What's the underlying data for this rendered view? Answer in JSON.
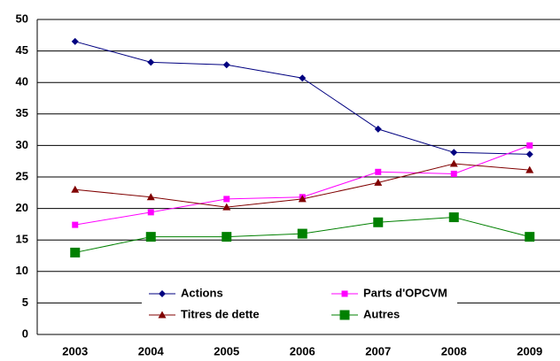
{
  "chart_data": {
    "type": "line",
    "categories": [
      "2003",
      "2004",
      "2005",
      "2006",
      "2007",
      "2008",
      "2009"
    ],
    "series": [
      {
        "name": "Actions",
        "color": "#000080",
        "marker": "diamond",
        "values": [
          46.5,
          43.2,
          42.8,
          40.7,
          32.6,
          28.9,
          28.6
        ]
      },
      {
        "name": "Parts d'OPCVM",
        "color": "#ff00ff",
        "marker": "square",
        "values": [
          17.4,
          19.4,
          21.5,
          21.8,
          25.8,
          25.5,
          30.0
        ]
      },
      {
        "name": "Titres de dette",
        "color": "#800000",
        "marker": "triangle",
        "values": [
          23.0,
          21.8,
          20.2,
          21.5,
          24.1,
          27.1,
          26.1
        ]
      },
      {
        "name": "Autres",
        "color": "#008000",
        "marker": "bigsquare",
        "values": [
          13.0,
          15.5,
          15.5,
          16.0,
          17.8,
          18.6,
          15.5
        ]
      }
    ],
    "ylim": [
      0,
      50
    ],
    "yticks": [
      0,
      5,
      10,
      15,
      20,
      25,
      30,
      35,
      40,
      45,
      50
    ],
    "grid": true
  }
}
